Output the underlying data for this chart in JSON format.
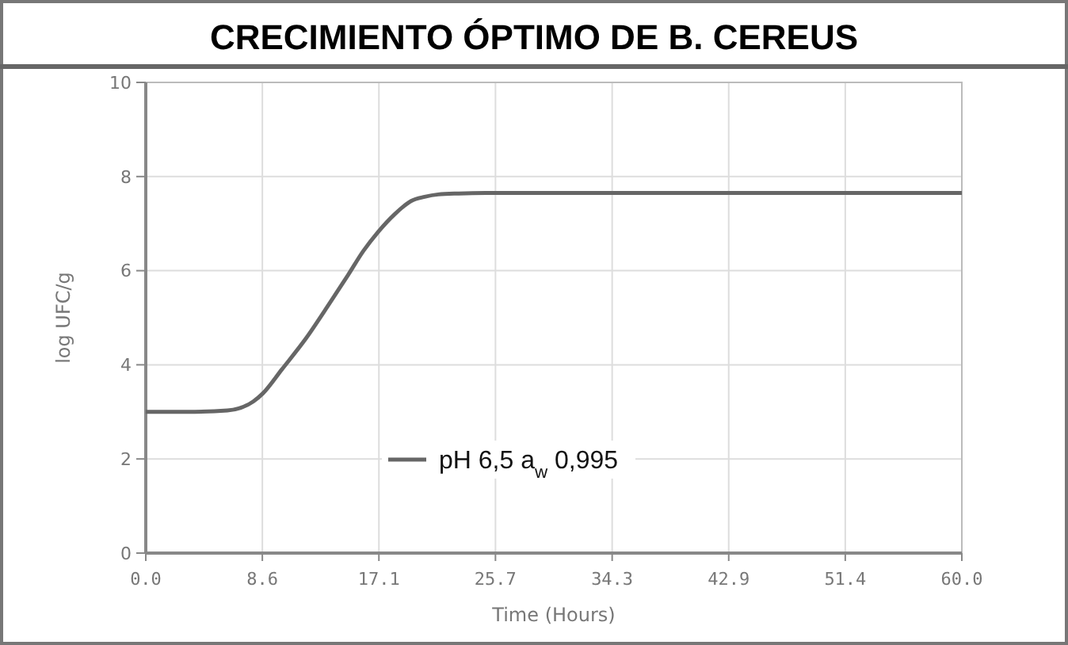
{
  "chart_data": {
    "type": "line",
    "title": "CRECIMIENTO ÓPTIMO DE B. CEREUS",
    "xlabel": "Time (Hours)",
    "ylabel": "log UFC/g",
    "x": [
      0,
      3,
      6,
      7.9,
      8.6,
      10,
      11.8,
      13.5,
      14.9,
      16,
      17.1,
      18.3,
      19.5,
      20.5,
      21.5,
      23,
      25,
      30,
      40,
      50,
      60
    ],
    "series": [
      {
        "name": "pH 6,5 a$_{w}$ 0,995",
        "color": "#666666",
        "values": [
          3.0,
          3.0,
          3.03,
          3.22,
          3.39,
          3.9,
          4.57,
          5.3,
          5.92,
          6.42,
          6.83,
          7.2,
          7.48,
          7.57,
          7.62,
          7.64,
          7.65,
          7.65,
          7.65,
          7.65,
          7.65
        ]
      }
    ],
    "xlim": [
      0,
      60
    ],
    "xticks": [
      {
        "value": 0,
        "label": "0.0"
      },
      {
        "value": 8.57,
        "label": "8.6"
      },
      {
        "value": 17.14,
        "label": "17.1"
      },
      {
        "value": 25.71,
        "label": "25.7"
      },
      {
        "value": 34.29,
        "label": "34.3"
      },
      {
        "value": 42.86,
        "label": "42.9"
      },
      {
        "value": 51.43,
        "label": "51.4"
      },
      {
        "value": 60,
        "label": "60.0"
      }
    ],
    "ylim": [
      0,
      10
    ],
    "yticks": [
      0,
      2,
      4,
      6,
      8,
      10
    ],
    "grid": true,
    "legend": "bottom",
    "marker": "none",
    "line_style": "solid"
  }
}
